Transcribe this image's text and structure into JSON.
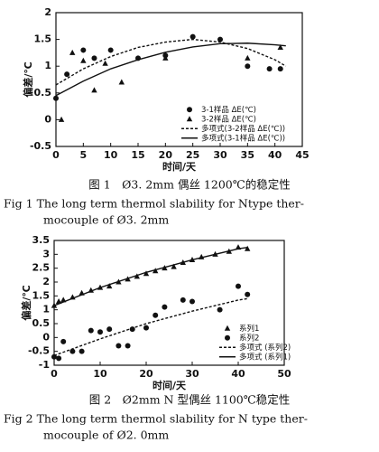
{
  "chart_data": [
    {
      "type": "scatter",
      "x_label": "时间/天",
      "y_label": "偏差/℃",
      "xlim": [
        0,
        45
      ],
      "xticks": [
        0,
        5,
        10,
        15,
        20,
        25,
        30,
        35,
        40,
        45
      ],
      "ylim": [
        -0.5,
        2
      ],
      "yticks": [
        -0.5,
        0,
        0.5,
        1,
        1.5,
        2
      ],
      "legend": "lower right",
      "series": [
        {
          "name": "3-1样品 ΔE(℃)",
          "color": "#111111",
          "marker": "circle",
          "x": [
            0,
            2,
            5,
            7,
            10,
            15,
            20,
            25,
            30,
            35,
            39,
            41
          ],
          "values": [
            0.4,
            0.85,
            1.3,
            1.15,
            1.3,
            1.15,
            1.2,
            1.55,
            1.5,
            1.0,
            0.95,
            0.95
          ]
        },
        {
          "name": "3-2样品 ΔE(℃)",
          "color": "#111111",
          "marker": "triangle",
          "x": [
            1,
            3,
            5,
            7,
            9,
            12,
            20,
            35,
            41
          ],
          "values": [
            0.0,
            1.25,
            1.1,
            0.55,
            1.05,
            0.7,
            1.15,
            1.15,
            1.35
          ]
        },
        {
          "name": "多项式(3-2样品 ΔE(℃))",
          "color": "#111111",
          "marker": "dashed",
          "x": [
            0,
            5,
            10,
            15,
            20,
            25,
            30,
            35,
            40,
            42
          ],
          "values": [
            0.65,
            0.95,
            1.18,
            1.35,
            1.45,
            1.5,
            1.45,
            1.33,
            1.12,
            1.0
          ]
        },
        {
          "name": "多项式(3-1样品 ΔE(℃))",
          "color": "#111111",
          "marker": "solid",
          "x": [
            0,
            5,
            10,
            15,
            20,
            25,
            30,
            35,
            40,
            42
          ],
          "values": [
            0.45,
            0.72,
            0.95,
            1.12,
            1.26,
            1.36,
            1.42,
            1.43,
            1.4,
            1.38
          ]
        }
      ],
      "caption": [
        "图 1　Ø3. 2mm 偶丝 1200℃的稳定性",
        "Fig 1 The long term thermol slability for Ntype ther-",
        "mocouple of Ø3. 2mm"
      ]
    },
    {
      "type": "scatter",
      "x_label": "时间/天",
      "y_label": "偏差/℃",
      "xlim": [
        0,
        50
      ],
      "xticks": [
        0,
        10,
        20,
        30,
        40,
        50
      ],
      "ylim": [
        -1,
        3.5
      ],
      "yticks": [
        -1,
        -0.5,
        0,
        0.5,
        1,
        1.5,
        2,
        2.5,
        3,
        3.5
      ],
      "legend": "lower right",
      "series": [
        {
          "name": "系列1",
          "color": "#111111",
          "marker": "triangle",
          "x": [
            0,
            1,
            2,
            4,
            6,
            8,
            10,
            12,
            14,
            16,
            18,
            20,
            22,
            24,
            26,
            28,
            30,
            32,
            35,
            38,
            40,
            42
          ],
          "values": [
            1.15,
            1.3,
            1.35,
            1.45,
            1.6,
            1.7,
            1.8,
            1.85,
            2.0,
            2.1,
            2.2,
            2.3,
            2.4,
            2.5,
            2.55,
            2.7,
            2.8,
            2.9,
            3.0,
            3.1,
            3.25,
            3.2
          ]
        },
        {
          "name": "系列2",
          "color": "#111111",
          "marker": "circle",
          "x": [
            0,
            1,
            2,
            4,
            6,
            8,
            10,
            12,
            14,
            16,
            17,
            20,
            22,
            24,
            28,
            30,
            36,
            40,
            42
          ],
          "values": [
            -0.7,
            -0.75,
            -0.15,
            -0.5,
            -0.5,
            0.25,
            0.2,
            0.3,
            -0.3,
            -0.3,
            0.3,
            0.35,
            0.8,
            1.1,
            1.35,
            1.3,
            1.0,
            1.85,
            1.55
          ]
        },
        {
          "name": "多项式 (系列2)",
          "color": "#111111",
          "marker": "dashed",
          "x": [
            0,
            10,
            20,
            30,
            40,
            42
          ],
          "values": [
            -0.65,
            -0.05,
            0.5,
            0.95,
            1.35,
            1.4
          ]
        },
        {
          "name": "多项式 (系列1)",
          "color": "#111111",
          "marker": "solid",
          "x": [
            0,
            10,
            20,
            30,
            40,
            42
          ],
          "values": [
            1.15,
            1.8,
            2.35,
            2.8,
            3.2,
            3.25
          ]
        }
      ],
      "caption": [
        "图 2　Ø2mm N 型偶丝 1100℃稳定性",
        "Fig 2 The long term thermol slability for N type ther-",
        "mocouple of Ø2. 0mm"
      ]
    }
  ]
}
